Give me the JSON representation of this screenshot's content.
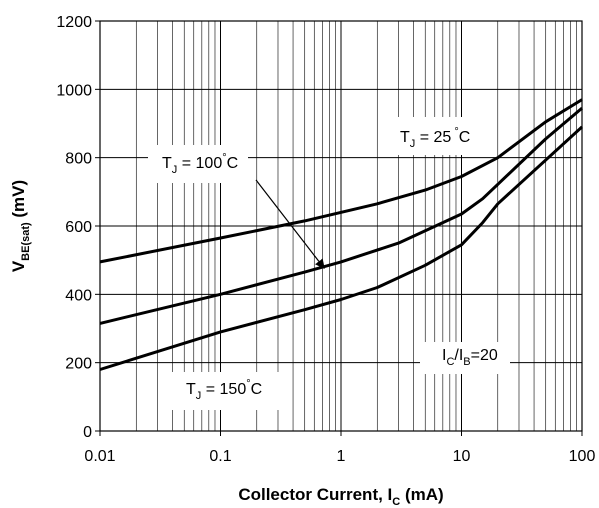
{
  "chart_data": {
    "type": "line",
    "title": "",
    "xlabel": "Collector Current, I",
    "xlabel_sub": "C",
    "xlabel_unit": " (mA)",
    "ylabel": "V",
    "ylabel_sub": "BE(sat)",
    "ylabel_unit": " (mV)",
    "x_scale": "log",
    "xlim": [
      0.01,
      100
    ],
    "ylim": [
      0,
      1200
    ],
    "grid": true,
    "x_tick_labels": [
      "0.01",
      "0.1",
      "1",
      "10",
      "100"
    ],
    "x_ticks": [
      0.01,
      0.1,
      1,
      10,
      100
    ],
    "y_ticks": [
      0,
      200,
      400,
      600,
      800,
      1000,
      1200
    ],
    "y_tick_labels": [
      "0",
      "200",
      "400",
      "600",
      "800",
      "1000",
      "1200"
    ],
    "series": [
      {
        "name": "TJ = 25°C",
        "x": [
          0.01,
          0.1,
          0.5,
          2,
          5,
          10,
          20,
          50,
          100
        ],
        "y": [
          495,
          565,
          615,
          665,
          705,
          745,
          800,
          905,
          970
        ]
      },
      {
        "name": "TJ = 100°C",
        "x": [
          0.01,
          0.1,
          0.5,
          1,
          3,
          10,
          15,
          50,
          100
        ],
        "y": [
          315,
          400,
          465,
          495,
          550,
          635,
          680,
          855,
          945
        ]
      },
      {
        "name": "TJ = 150°C",
        "x": [
          0.01,
          0.1,
          0.5,
          1,
          2,
          5,
          10,
          15,
          20,
          100
        ],
        "y": [
          180,
          290,
          355,
          385,
          420,
          485,
          545,
          610,
          665,
          890
        ]
      }
    ],
    "annotations": [
      {
        "main": "T",
        "sub": "J",
        "rest": " = 25",
        "deg": "°",
        "unit": "C"
      },
      {
        "main": "T",
        "sub": "J",
        "rest": " = 100",
        "deg": "°",
        "unit": "C"
      },
      {
        "main": "T",
        "sub": "J",
        "rest": " = 150",
        "deg": "°",
        "unit": "C"
      },
      {
        "main": "I",
        "sub": "C",
        "rest": "/I",
        "sub2": "B",
        "rest2": "=20"
      }
    ]
  }
}
